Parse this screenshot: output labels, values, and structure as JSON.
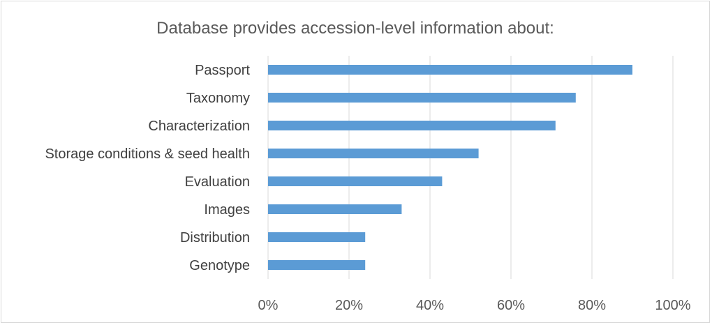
{
  "chart_data": {
    "type": "bar",
    "orientation": "horizontal",
    "title": "Database provides accession-level information about:",
    "xlabel": "",
    "ylabel": "",
    "categories": [
      "Passport",
      "Taxonomy",
      "Characterization",
      "Storage conditions & seed health",
      "Evaluation",
      "Images",
      "Distribution",
      "Genotype"
    ],
    "values": [
      90,
      76,
      71,
      52,
      43,
      33,
      24,
      24
    ],
    "xlim": [
      0,
      100
    ],
    "x_ticks": [
      "0%",
      "20%",
      "40%",
      "60%",
      "80%",
      "100%"
    ],
    "grid": "vertical",
    "legend": "none",
    "bar_color": "#5b9bd5"
  }
}
